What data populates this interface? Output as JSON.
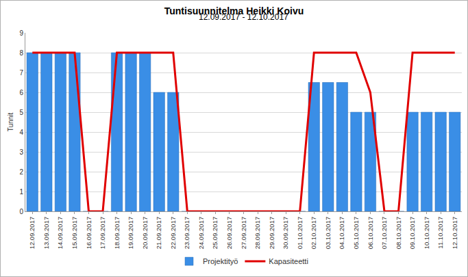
{
  "chart_data": {
    "type": "bar",
    "title": "Tuntisuunnitelma Heikki Koivu",
    "subtitle": "12.09.2017 - 12.10.2017",
    "y_label": "Tunnit",
    "categories": [
      "12.09.2017",
      "13.09.2017",
      "14.09.2017",
      "15.09.2017",
      "16.09.2017",
      "17.09.2017",
      "18.09.2017",
      "19.09.2017",
      "20.09.2017",
      "21.09.2017",
      "22.09.2017",
      "23.09.2017",
      "24.09.2017",
      "25.09.2017",
      "26.09.2017",
      "27.09.2017",
      "28.09.2017",
      "29.09.2017",
      "30.09.2017",
      "01.10.2017",
      "02.10.2017",
      "03.10.2017",
      "04.10.2017",
      "05.10.2017",
      "06.10.2017",
      "07.10.2017",
      "08.10.2017",
      "09.10.2017",
      "10.10.2017",
      "11.10.2017",
      "12.10.2017"
    ],
    "series": [
      {
        "name": "Projektityö",
        "type": "bar",
        "color": "#3a8ee6",
        "values": [
          8,
          8,
          8,
          8,
          0,
          0,
          8,
          8,
          8,
          6,
          6,
          0,
          0,
          0,
          0,
          0,
          0,
          0,
          0,
          0,
          6.5,
          6.5,
          6.5,
          5,
          5,
          0,
          0,
          5,
          5,
          5,
          5
        ]
      },
      {
        "name": "Kapasiteetti",
        "type": "line",
        "color": "#e00000",
        "values": [
          8,
          8,
          8,
          8,
          0,
          0,
          8,
          8,
          8,
          8,
          8,
          0,
          0,
          0,
          0,
          0,
          0,
          0,
          0,
          0,
          8,
          8,
          8,
          8,
          6,
          0,
          0,
          8,
          8,
          8,
          8
        ]
      }
    ],
    "ylim": [
      0,
      9
    ],
    "yticks": [
      0,
      1,
      2,
      3,
      4,
      5,
      6,
      7,
      8,
      9
    ],
    "grid": true,
    "legend": "bottom"
  }
}
